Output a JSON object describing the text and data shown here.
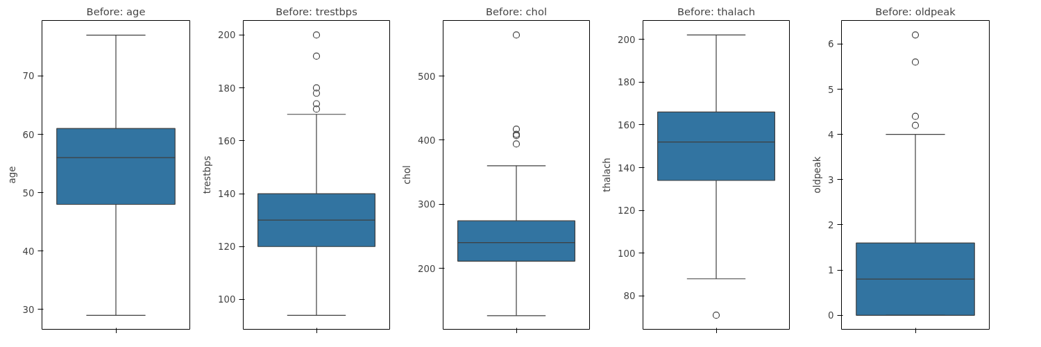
{
  "chart_data": [
    {
      "type": "box",
      "title": "Before: age",
      "ylabel": "age",
      "categories": [
        null
      ],
      "color": "#3274a1",
      "grid": false,
      "tick_labels": "y",
      "ylim": [
        26.6,
        79.5
      ],
      "yticks": [
        30,
        40,
        50,
        60,
        70
      ],
      "boxes": [
        {
          "low": 29,
          "q1": 48,
          "median": 56,
          "q3": 61,
          "high": 77
        }
      ]
    },
    {
      "type": "box",
      "title": "Before: trestbps",
      "ylabel": "trestbps",
      "categories": [
        null
      ],
      "color": "#3274a1",
      "grid": false,
      "tick_labels": "y",
      "ylim": [
        88.7,
        205.5
      ],
      "yticks": [
        100,
        120,
        140,
        160,
        180,
        200
      ],
      "boxes": [
        {
          "low": 94,
          "q1": 120,
          "median": 130,
          "q3": 140,
          "high": 170,
          "outliers": [
            172,
            174,
            178,
            180,
            192,
            200
          ]
        }
      ]
    },
    {
      "type": "box",
      "title": "Before: chol",
      "ylabel": "chol",
      "categories": [
        null
      ],
      "color": "#3274a1",
      "grid": false,
      "tick_labels": "y",
      "ylim": [
        104.7,
        586.7
      ],
      "yticks": [
        200,
        300,
        400,
        500
      ],
      "boxes": [
        {
          "low": 126,
          "q1": 211,
          "median": 240,
          "q3": 274,
          "high": 360,
          "outliers": [
            394,
            407,
            409,
            417,
            564
          ]
        }
      ]
    },
    {
      "type": "box",
      "title": "Before: thalach",
      "ylabel": "thalach",
      "categories": [
        null
      ],
      "color": "#3274a1",
      "grid": false,
      "tick_labels": "y",
      "ylim": [
        64.4,
        208.8
      ],
      "yticks": [
        80,
        100,
        120,
        140,
        160,
        180,
        200
      ],
      "boxes": [
        {
          "low": 88,
          "q1": 134,
          "median": 152,
          "q3": 166,
          "high": 202,
          "outliers": [
            71
          ]
        }
      ]
    },
    {
      "type": "box",
      "title": "Before: oldpeak",
      "ylabel": "oldpeak",
      "categories": [
        null
      ],
      "color": "#3274a1",
      "grid": false,
      "tick_labels": "y",
      "ylim": [
        -0.31,
        6.52
      ],
      "yticks": [
        0,
        1,
        2,
        3,
        4,
        5,
        6
      ],
      "boxes": [
        {
          "low": 0,
          "q1": 0,
          "median": 0.8,
          "q3": 1.6,
          "high": 4,
          "outliers": [
            4.2,
            4.4,
            5.6,
            6.2
          ]
        }
      ]
    }
  ]
}
